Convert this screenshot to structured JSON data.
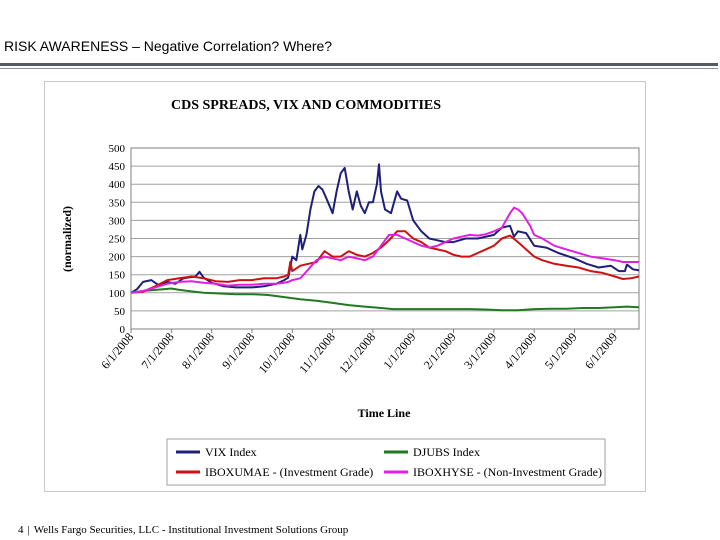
{
  "header": {
    "title": "RISK AWARENESS – Negative Correlation? Where?"
  },
  "footer": {
    "page_number": "4",
    "separator": "|",
    "text": "Wells Fargo Securities, LLC - Institutional Investment Solutions Group"
  },
  "chart_data": {
    "type": "line",
    "title": "CDS SPREADS, VIX AND COMMODITIES",
    "xlabel": "Time Line",
    "ylabel": "(normalized)",
    "ylim": [
      0,
      500
    ],
    "yticks": [
      0,
      50,
      100,
      150,
      200,
      250,
      300,
      350,
      400,
      450,
      500
    ],
    "xlim": [
      0,
      12.6
    ],
    "xticks": [
      "6/1/2008",
      "7/1/2008",
      "8/1/2008",
      "9/1/2008",
      "10/1/2008",
      "11/1/2008",
      "12/1/2008",
      "1/1/2009",
      "2/1/2009",
      "3/1/2009",
      "4/1/2009",
      "5/1/2009",
      "6/1/2009"
    ],
    "grid": "horizontal",
    "legend_position": "bottom",
    "legend": [
      "VIX Index",
      "DJUBS Index",
      "IBOXUMAE - (Investment Grade)",
      "IBOXHYSE - (Non-Investment Grade)"
    ],
    "series": [
      {
        "name": "VIX Index",
        "color": "#1f1f7a",
        "points": [
          [
            0,
            100
          ],
          [
            0.15,
            110
          ],
          [
            0.3,
            130
          ],
          [
            0.5,
            135
          ],
          [
            0.7,
            120
          ],
          [
            0.9,
            130
          ],
          [
            1.1,
            125
          ],
          [
            1.3,
            140
          ],
          [
            1.6,
            145
          ],
          [
            1.7,
            158
          ],
          [
            1.8,
            142
          ],
          [
            2.0,
            128
          ],
          [
            2.3,
            118
          ],
          [
            2.6,
            115
          ],
          [
            3.0,
            115
          ],
          [
            3.3,
            118
          ],
          [
            3.6,
            125
          ],
          [
            3.8,
            135
          ],
          [
            3.9,
            142
          ],
          [
            4.0,
            200
          ],
          [
            4.1,
            190
          ],
          [
            4.2,
            260
          ],
          [
            4.25,
            220
          ],
          [
            4.35,
            260
          ],
          [
            4.45,
            330
          ],
          [
            4.55,
            380
          ],
          [
            4.65,
            395
          ],
          [
            4.75,
            385
          ],
          [
            4.85,
            360
          ],
          [
            5.0,
            320
          ],
          [
            5.1,
            380
          ],
          [
            5.2,
            430
          ],
          [
            5.3,
            445
          ],
          [
            5.4,
            380
          ],
          [
            5.5,
            330
          ],
          [
            5.6,
            380
          ],
          [
            5.7,
            340
          ],
          [
            5.8,
            320
          ],
          [
            5.9,
            350
          ],
          [
            6.0,
            350
          ],
          [
            6.1,
            400
          ],
          [
            6.15,
            455
          ],
          [
            6.2,
            380
          ],
          [
            6.3,
            330
          ],
          [
            6.45,
            320
          ],
          [
            6.6,
            380
          ],
          [
            6.7,
            360
          ],
          [
            6.85,
            355
          ],
          [
            7.0,
            300
          ],
          [
            7.2,
            270
          ],
          [
            7.4,
            250
          ],
          [
            7.6,
            245
          ],
          [
            7.8,
            240
          ],
          [
            8.0,
            240
          ],
          [
            8.3,
            250
          ],
          [
            8.6,
            250
          ],
          [
            9.0,
            260
          ],
          [
            9.2,
            280
          ],
          [
            9.4,
            285
          ],
          [
            9.5,
            255
          ],
          [
            9.6,
            270
          ],
          [
            9.8,
            265
          ],
          [
            10.0,
            230
          ],
          [
            10.3,
            225
          ],
          [
            10.6,
            210
          ],
          [
            11.0,
            195
          ],
          [
            11.3,
            180
          ],
          [
            11.6,
            170
          ],
          [
            11.9,
            175
          ],
          [
            12.1,
            160
          ],
          [
            12.25,
            160
          ],
          [
            12.3,
            178
          ],
          [
            12.45,
            165
          ],
          [
            12.6,
            162
          ]
        ]
      },
      {
        "name": "DJUBS Index",
        "color": "#217a21",
        "points": [
          [
            0,
            100
          ],
          [
            0.3,
            105
          ],
          [
            0.6,
            108
          ],
          [
            0.8,
            110
          ],
          [
            1.0,
            112
          ],
          [
            1.2,
            108
          ],
          [
            1.5,
            104
          ],
          [
            1.8,
            100
          ],
          [
            2.2,
            98
          ],
          [
            2.6,
            96
          ],
          [
            3.0,
            96
          ],
          [
            3.4,
            94
          ],
          [
            3.8,
            88
          ],
          [
            4.2,
            82
          ],
          [
            4.6,
            78
          ],
          [
            5.0,
            72
          ],
          [
            5.4,
            66
          ],
          [
            5.8,
            62
          ],
          [
            6.2,
            58
          ],
          [
            6.5,
            55
          ],
          [
            6.8,
            55
          ],
          [
            7.2,
            55
          ],
          [
            7.6,
            55
          ],
          [
            8.0,
            55
          ],
          [
            8.4,
            55
          ],
          [
            8.8,
            54
          ],
          [
            9.2,
            52
          ],
          [
            9.6,
            52
          ],
          [
            10.0,
            55
          ],
          [
            10.4,
            56
          ],
          [
            10.8,
            56
          ],
          [
            11.2,
            58
          ],
          [
            11.6,
            58
          ],
          [
            12.0,
            60
          ],
          [
            12.3,
            62
          ],
          [
            12.6,
            60
          ]
        ]
      },
      {
        "name": "IBOXUMAE - (Investment Grade)",
        "color": "#d01010",
        "points": [
          [
            0,
            100
          ],
          [
            0.3,
            103
          ],
          [
            0.6,
            118
          ],
          [
            0.9,
            135
          ],
          [
            1.2,
            140
          ],
          [
            1.5,
            145
          ],
          [
            1.8,
            140
          ],
          [
            2.1,
            132
          ],
          [
            2.4,
            130
          ],
          [
            2.7,
            135
          ],
          [
            3.0,
            135
          ],
          [
            3.3,
            140
          ],
          [
            3.6,
            140
          ],
          [
            3.8,
            145
          ],
          [
            3.9,
            150
          ],
          [
            3.95,
            185
          ],
          [
            4.0,
            160
          ],
          [
            4.2,
            175
          ],
          [
            4.4,
            180
          ],
          [
            4.6,
            185
          ],
          [
            4.8,
            215
          ],
          [
            5.0,
            200
          ],
          [
            5.2,
            200
          ],
          [
            5.4,
            215
          ],
          [
            5.6,
            205
          ],
          [
            5.8,
            200
          ],
          [
            6.0,
            210
          ],
          [
            6.2,
            225
          ],
          [
            6.4,
            245
          ],
          [
            6.6,
            270
          ],
          [
            6.8,
            270
          ],
          [
            7.0,
            250
          ],
          [
            7.2,
            240
          ],
          [
            7.4,
            225
          ],
          [
            7.6,
            220
          ],
          [
            7.8,
            215
          ],
          [
            8.0,
            205
          ],
          [
            8.2,
            200
          ],
          [
            8.4,
            200
          ],
          [
            8.6,
            210
          ],
          [
            8.8,
            220
          ],
          [
            9.0,
            230
          ],
          [
            9.2,
            250
          ],
          [
            9.4,
            258
          ],
          [
            9.6,
            240
          ],
          [
            9.8,
            220
          ],
          [
            10.0,
            200
          ],
          [
            10.2,
            190
          ],
          [
            10.5,
            180
          ],
          [
            10.8,
            175
          ],
          [
            11.1,
            170
          ],
          [
            11.4,
            160
          ],
          [
            11.7,
            155
          ],
          [
            12.0,
            145
          ],
          [
            12.2,
            138
          ],
          [
            12.4,
            140
          ],
          [
            12.6,
            145
          ]
        ]
      },
      {
        "name": "IBOXHYSE - (Non-Investment Grade)",
        "color": "#e020e0",
        "points": [
          [
            0,
            100
          ],
          [
            0.3,
            105
          ],
          [
            0.6,
            115
          ],
          [
            0.9,
            125
          ],
          [
            1.2,
            130
          ],
          [
            1.5,
            132
          ],
          [
            1.8,
            128
          ],
          [
            2.1,
            125
          ],
          [
            2.4,
            120
          ],
          [
            2.7,
            122
          ],
          [
            3.0,
            122
          ],
          [
            3.3,
            125
          ],
          [
            3.6,
            125
          ],
          [
            3.8,
            128
          ],
          [
            3.9,
            130
          ],
          [
            4.0,
            135
          ],
          [
            4.2,
            140
          ],
          [
            4.4,
            165
          ],
          [
            4.6,
            190
          ],
          [
            4.8,
            200
          ],
          [
            5.0,
            195
          ],
          [
            5.2,
            190
          ],
          [
            5.4,
            200
          ],
          [
            5.6,
            195
          ],
          [
            5.8,
            190
          ],
          [
            6.0,
            200
          ],
          [
            6.2,
            230
          ],
          [
            6.4,
            260
          ],
          [
            6.6,
            260
          ],
          [
            6.8,
            250
          ],
          [
            7.0,
            240
          ],
          [
            7.2,
            230
          ],
          [
            7.4,
            225
          ],
          [
            7.6,
            230
          ],
          [
            7.8,
            240
          ],
          [
            8.0,
            250
          ],
          [
            8.2,
            255
          ],
          [
            8.4,
            260
          ],
          [
            8.6,
            258
          ],
          [
            8.8,
            262
          ],
          [
            9.0,
            270
          ],
          [
            9.2,
            280
          ],
          [
            9.4,
            320
          ],
          [
            9.5,
            335
          ],
          [
            9.6,
            330
          ],
          [
            9.7,
            320
          ],
          [
            9.9,
            285
          ],
          [
            10.0,
            260
          ],
          [
            10.2,
            250
          ],
          [
            10.5,
            230
          ],
          [
            10.8,
            220
          ],
          [
            11.1,
            210
          ],
          [
            11.4,
            200
          ],
          [
            11.7,
            195
          ],
          [
            12.0,
            190
          ],
          [
            12.2,
            185
          ],
          [
            12.4,
            185
          ],
          [
            12.6,
            185
          ]
        ]
      }
    ]
  }
}
